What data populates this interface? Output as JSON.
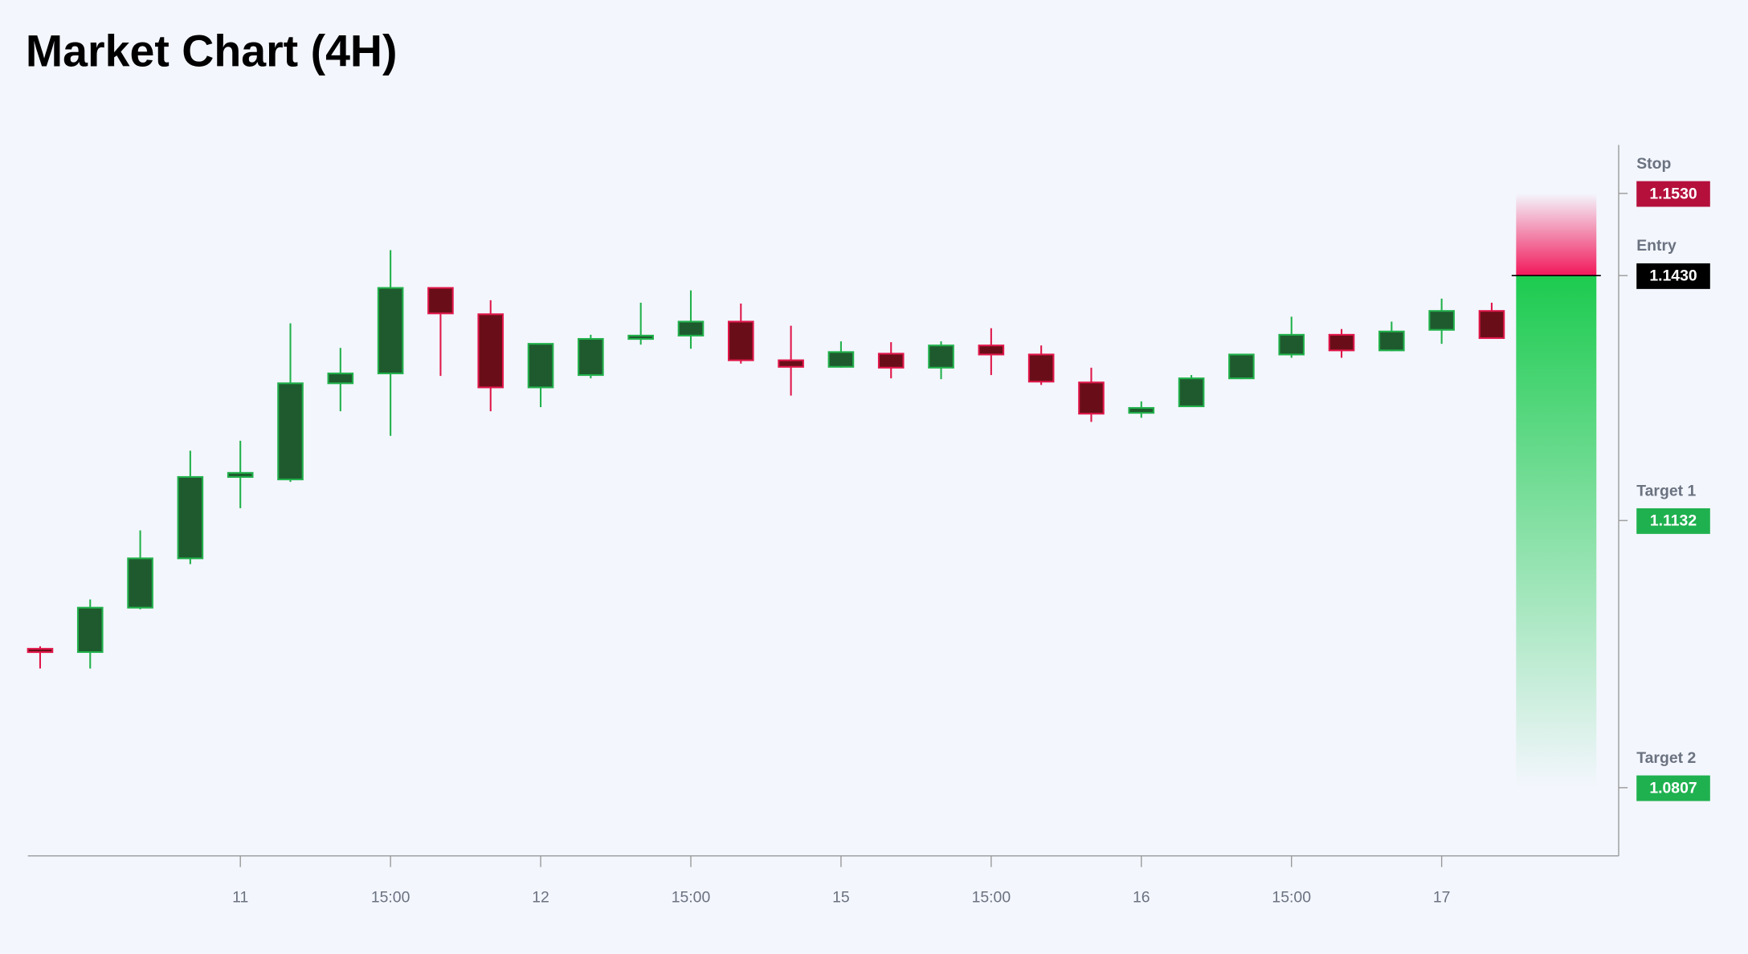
{
  "chart_data": {
    "type": "candlestick",
    "title": "Market Chart (4H)",
    "categories": [
      null,
      null,
      null,
      null,
      "11",
      null,
      null,
      "15:00",
      null,
      null,
      "12",
      null,
      null,
      "15:00",
      null,
      null,
      "15",
      null,
      null,
      "15:00",
      null,
      null,
      "16",
      null,
      null,
      "15:00",
      null,
      null,
      "17",
      null
    ],
    "open": [
      1.0976,
      1.0972,
      1.1026,
      1.1086,
      1.1185,
      1.1182,
      1.1299,
      1.1311,
      1.1415,
      1.1383,
      1.1294,
      1.1309,
      1.1353,
      1.1357,
      1.1374,
      1.1327,
      1.1319,
      1.1335,
      1.1318,
      1.1345,
      1.1334,
      1.13,
      1.1263,
      1.1271,
      1.1305,
      1.1334,
      1.1358,
      1.1339,
      1.1364,
      1.1387
    ],
    "high": [
      1.0979,
      1.1036,
      1.112,
      1.1217,
      1.1229,
      1.1372,
      1.1342,
      1.1461,
      1.1415,
      1.14,
      1.1347,
      1.1358,
      1.1397,
      1.1412,
      1.1396,
      1.1369,
      1.135,
      1.1349,
      1.135,
      1.1366,
      1.1345,
      1.1318,
      1.1277,
      1.1309,
      1.1334,
      1.138,
      1.1365,
      1.1374,
      1.1402,
      1.1397
    ],
    "low": [
      1.0952,
      1.0952,
      1.1024,
      1.1079,
      1.1147,
      1.1179,
      1.1265,
      1.1235,
      1.1308,
      1.1265,
      1.127,
      1.1305,
      1.1346,
      1.1341,
      1.1323,
      1.1284,
      1.1318,
      1.1305,
      1.1304,
      1.1309,
      1.1297,
      1.1252,
      1.1257,
      1.127,
      1.1304,
      1.133,
      1.133,
      1.1338,
      1.1347,
      1.1354
    ],
    "close": [
      1.0972,
      1.1026,
      1.1086,
      1.1185,
      1.119,
      1.1299,
      1.1311,
      1.1415,
      1.1384,
      1.1294,
      1.1347,
      1.1353,
      1.1357,
      1.1374,
      1.1327,
      1.1319,
      1.1337,
      1.1318,
      1.1345,
      1.1334,
      1.1301,
      1.1262,
      1.1269,
      1.1305,
      1.1334,
      1.1358,
      1.1339,
      1.1362,
      1.1387,
      1.1354
    ],
    "ylim": [
      1.0724,
      1.1589
    ],
    "up_color": "#22b14c",
    "down_color": "#e0174a",
    "levels": [
      {
        "name": "Stop",
        "value": 1.153,
        "label": "1.1530",
        "color": "#b5103c"
      },
      {
        "name": "Entry",
        "value": 1.143,
        "label": "1.1430",
        "color": "#000000"
      },
      {
        "name": "Target 1",
        "value": 1.1132,
        "label": "1.1132",
        "color": "#1fb14f"
      },
      {
        "name": "Target 2",
        "value": 1.0807,
        "label": "1.0807",
        "color": "#1fb14f"
      }
    ]
  }
}
